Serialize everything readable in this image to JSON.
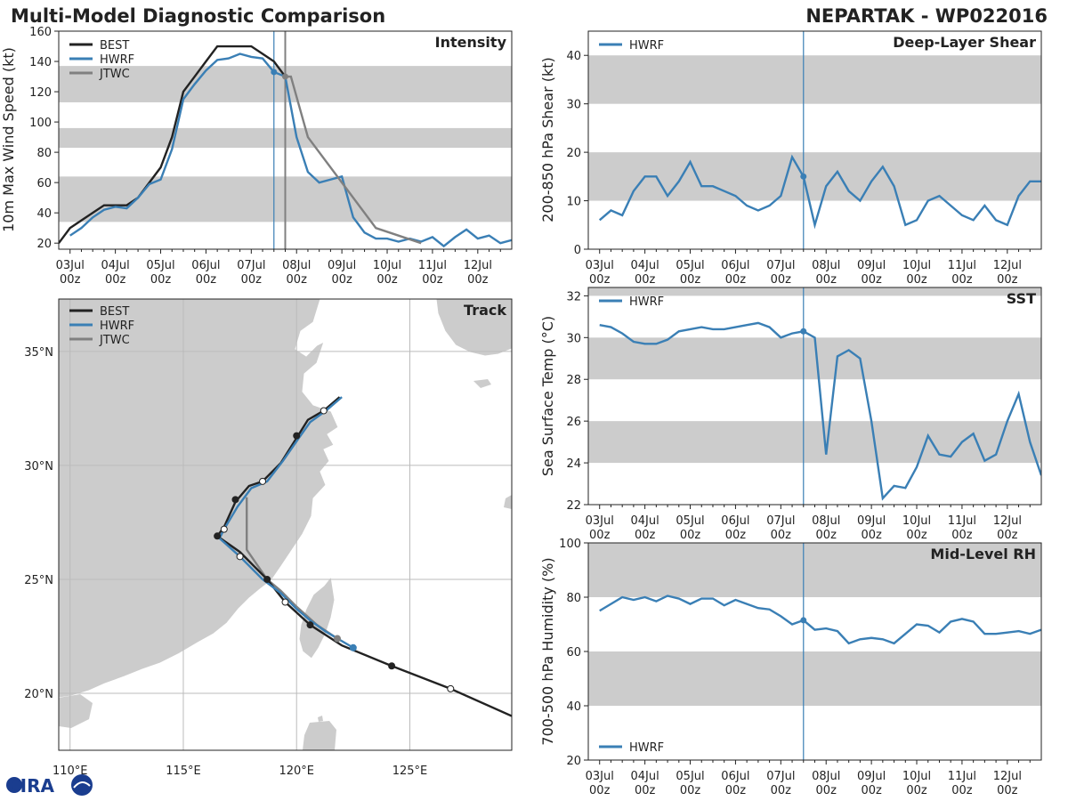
{
  "header": {
    "title": "Multi-Model Diagnostic Comparison",
    "storm": "NEPARTAK - WP022016",
    "logo_text": "CIRA"
  },
  "colors": {
    "best": "#222222",
    "hwrf": "#3a7fb5",
    "jtwc": "#808080",
    "band": "#cccccc",
    "land": "#cccccc",
    "grid": "#bbbbbb"
  },
  "time_axis": {
    "start_day": 3,
    "tick_days": [
      3,
      4,
      5,
      6,
      7,
      8,
      9,
      10,
      11,
      12
    ],
    "tick_labels": [
      "03Jul",
      "04Jul",
      "05Jul",
      "06Jul",
      "07Jul",
      "08Jul",
      "09Jul",
      "10Jul",
      "11Jul",
      "12Jul"
    ],
    "tick_sublabel": "00z",
    "current_time_days": 7.5
  },
  "chart_data": [
    {
      "id": "intensity",
      "type": "line",
      "title": "Intensity",
      "ylabel": "10m Max Wind Speed (kt)",
      "xlabel": "",
      "xlim": [
        2.75,
        12.75
      ],
      "ylim": [
        16,
        160
      ],
      "yticks": [
        20,
        40,
        60,
        80,
        100,
        120,
        140,
        160
      ],
      "bands": [
        [
          34,
          64
        ],
        [
          83,
          96
        ],
        [
          113,
          137
        ]
      ],
      "vlines": [
        {
          "x": 7.5,
          "color": "hwrf"
        },
        {
          "x": 7.75,
          "color": "jtwc"
        }
      ],
      "legend": [
        "BEST",
        "HWRF",
        "JTWC"
      ],
      "series": [
        {
          "name": "BEST",
          "color": "best",
          "x": [
            2.75,
            3.0,
            3.25,
            3.5,
            3.75,
            4.0,
            4.25,
            4.5,
            4.75,
            5.0,
            5.25,
            5.5,
            5.75,
            6.0,
            6.25,
            6.5,
            6.75,
            7.0,
            7.25,
            7.5,
            7.75
          ],
          "y": [
            20,
            30,
            35,
            40,
            45,
            45,
            45,
            50,
            60,
            70,
            90,
            120,
            130,
            140,
            150,
            150,
            150,
            150,
            145,
            140,
            130
          ]
        },
        {
          "name": "HWRF",
          "color": "hwrf",
          "marker_index": 0,
          "x": [
            7.5,
            7.75,
            8.0,
            8.25,
            8.5,
            8.75,
            9.0,
            9.25,
            9.5,
            9.75,
            10.0,
            10.25,
            10.5,
            10.75,
            11.0,
            11.25,
            11.5,
            11.75,
            12.0,
            12.25,
            12.5,
            12.75
          ],
          "y": [
            133,
            130,
            90,
            67,
            60,
            62,
            64,
            37,
            27,
            23,
            23,
            21,
            23,
            21,
            24,
            18,
            24,
            29,
            23,
            25,
            20,
            22
          ],
          "x_pre": [
            3.0,
            3.25,
            3.5,
            3.75,
            4.0,
            4.25,
            4.5,
            4.75,
            5.0,
            5.25,
            5.5,
            5.75,
            6.0,
            6.25,
            6.5,
            6.75,
            7.0,
            7.25,
            7.5
          ],
          "y_pre": [
            25,
            30,
            37,
            42,
            44,
            43,
            50,
            59,
            62,
            82,
            115,
            125,
            134,
            141,
            142,
            145,
            143,
            142,
            133
          ]
        },
        {
          "name": "JTWC",
          "color": "jtwc",
          "marker_index": 0,
          "x": [
            7.75,
            7.875,
            8.25,
            9.0,
            9.75,
            10.75
          ],
          "y": [
            130,
            130,
            90,
            60,
            30,
            20
          ]
        }
      ]
    },
    {
      "id": "shear",
      "type": "line",
      "title": "Deep-Layer Shear",
      "ylabel": "200-850 hPa Shear (kt)",
      "xlabel": "",
      "xlim": [
        2.75,
        12.75
      ],
      "ylim": [
        0,
        45
      ],
      "yticks": [
        0,
        10,
        20,
        30,
        40
      ],
      "bands": [
        [
          10,
          20
        ],
        [
          30,
          40
        ]
      ],
      "vlines": [
        {
          "x": 7.5,
          "color": "hwrf"
        }
      ],
      "legend": [
        "HWRF"
      ],
      "series": [
        {
          "name": "HWRF",
          "color": "hwrf",
          "marker_x": 7.5,
          "x": [
            3.0,
            3.25,
            3.5,
            3.75,
            4.0,
            4.25,
            4.5,
            4.75,
            5.0,
            5.25,
            5.5,
            5.75,
            6.0,
            6.25,
            6.5,
            6.75,
            7.0,
            7.25,
            7.5,
            7.75,
            8.0,
            8.25,
            8.5,
            8.75,
            9.0,
            9.25,
            9.5,
            9.75,
            10.0,
            10.25,
            10.5,
            10.75,
            11.0,
            11.25,
            11.5,
            11.75,
            12.0,
            12.25,
            12.5,
            12.75
          ],
          "y": [
            6,
            8,
            7,
            12,
            15,
            15,
            11,
            14,
            18,
            13,
            13,
            12,
            11,
            9,
            8,
            9,
            11,
            19,
            15,
            5,
            13,
            16,
            12,
            10,
            14,
            17,
            13,
            5,
            6,
            10,
            11,
            9,
            7,
            6,
            9,
            6,
            5,
            11,
            14,
            14
          ]
        }
      ]
    },
    {
      "id": "sst",
      "type": "line",
      "title": "SST",
      "ylabel": "Sea Surface Temp (°C)",
      "xlabel": "",
      "xlim": [
        2.75,
        12.75
      ],
      "ylim": [
        22,
        32.4
      ],
      "yticks": [
        22,
        24,
        26,
        28,
        30,
        32
      ],
      "bands": [
        [
          24,
          26
        ],
        [
          28,
          30
        ],
        [
          32,
          32.4
        ]
      ],
      "vlines": [
        {
          "x": 7.5,
          "color": "hwrf"
        }
      ],
      "legend": [
        "HWRF"
      ],
      "series": [
        {
          "name": "HWRF",
          "color": "hwrf",
          "marker_x": 7.5,
          "x": [
            3.0,
            3.25,
            3.5,
            3.75,
            4.0,
            4.25,
            4.5,
            4.75,
            5.0,
            5.25,
            5.5,
            5.75,
            6.0,
            6.25,
            6.5,
            6.75,
            7.0,
            7.25,
            7.5,
            7.75,
            8.0,
            8.25,
            8.5,
            8.75,
            9.0,
            9.25,
            9.5,
            9.75,
            10.0,
            10.25,
            10.5,
            10.75,
            11.0,
            11.25,
            11.5,
            11.75,
            12.0,
            12.25,
            12.5,
            12.75
          ],
          "y": [
            30.6,
            30.5,
            30.2,
            29.8,
            29.7,
            29.7,
            29.9,
            30.3,
            30.4,
            30.5,
            30.4,
            30.4,
            30.5,
            30.6,
            30.7,
            30.5,
            30.0,
            30.2,
            30.3,
            30.0,
            24.4,
            29.1,
            29.4,
            29.0,
            26.0,
            22.3,
            22.9,
            22.8,
            23.8,
            25.3,
            24.4,
            24.3,
            25.0,
            25.4,
            24.1,
            24.4,
            26.0,
            27.3,
            25.0,
            23.4
          ]
        }
      ]
    },
    {
      "id": "rh",
      "type": "line",
      "title": "Mid-Level RH",
      "ylabel": "700-500 hPa Humidity (%)",
      "xlabel": "",
      "xlim": [
        2.75,
        12.75
      ],
      "ylim": [
        20,
        100
      ],
      "yticks": [
        20,
        40,
        60,
        80,
        100
      ],
      "bands": [
        [
          40,
          60
        ],
        [
          80,
          100
        ]
      ],
      "vlines": [
        {
          "x": 7.5,
          "color": "hwrf"
        }
      ],
      "legend": [
        "HWRF"
      ],
      "series": [
        {
          "name": "HWRF",
          "color": "hwrf",
          "marker_x": 7.5,
          "x": [
            3.0,
            3.25,
            3.5,
            3.75,
            4.0,
            4.25,
            4.5,
            4.75,
            5.0,
            5.25,
            5.5,
            5.75,
            6.0,
            6.25,
            6.5,
            6.75,
            7.0,
            7.25,
            7.5,
            7.75,
            8.0,
            8.25,
            8.5,
            8.75,
            9.0,
            9.25,
            9.5,
            9.75,
            10.0,
            10.25,
            10.5,
            10.75,
            11.0,
            11.25,
            11.5,
            11.75,
            12.0,
            12.25,
            12.5,
            12.75
          ],
          "y": [
            75,
            77.5,
            80,
            79,
            80,
            78.5,
            80.5,
            79.5,
            77.5,
            79.5,
            79.5,
            77,
            79,
            77.5,
            76,
            75.5,
            73,
            70,
            71.5,
            68,
            68.5,
            67.5,
            63,
            64.5,
            65,
            64.5,
            63,
            66.5,
            70,
            69.5,
            67,
            71,
            72,
            71,
            66.5,
            66.5,
            67,
            67.5,
            66.5,
            68
          ]
        }
      ]
    },
    {
      "id": "track",
      "type": "scatter",
      "title": "Track",
      "xlabel": "",
      "ylabel": "",
      "xlim": [
        109.5,
        129.5
      ],
      "ylim": [
        17.5,
        37.3
      ],
      "xticks": [
        110,
        115,
        120,
        125
      ],
      "xtick_labels": [
        "110°E",
        "115°E",
        "120°E",
        "125°E"
      ],
      "yticks": [
        20,
        25,
        30,
        35
      ],
      "ytick_labels": [
        "20°N",
        "25°N",
        "30°N",
        "35°N"
      ],
      "legend": [
        "BEST",
        "HWRF",
        "JTWC"
      ],
      "series": [
        {
          "name": "BEST",
          "color": "best",
          "lon": [
            129.5,
            126.8,
            124.2,
            122.0,
            120.6,
            119.5,
            118.7,
            117.5,
            116.5,
            116.8,
            117.3,
            117.9,
            118.5,
            119.3,
            120.0,
            120.5,
            121.2,
            121.9
          ],
          "lat": [
            19.0,
            20.2,
            21.2,
            22.1,
            23.0,
            24.0,
            25.0,
            26.2,
            26.9,
            27.3,
            28.4,
            29.1,
            29.3,
            30.1,
            31.2,
            32.0,
            32.4,
            33.0
          ],
          "dots": [
            {
              "lon": 126.8,
              "lat": 20.2,
              "fill": "open"
            },
            {
              "lon": 124.2,
              "lat": 21.2,
              "fill": "solid"
            },
            {
              "lon": 120.6,
              "lat": 23.0,
              "fill": "solid"
            },
            {
              "lon": 119.5,
              "lat": 24.0,
              "fill": "open"
            },
            {
              "lon": 118.7,
              "lat": 25.0,
              "fill": "solid"
            },
            {
              "lon": 117.5,
              "lat": 26.0,
              "fill": "open"
            },
            {
              "lon": 116.5,
              "lat": 26.9,
              "fill": "solid"
            },
            {
              "lon": 116.8,
              "lat": 27.2,
              "fill": "open"
            },
            {
              "lon": 117.3,
              "lat": 28.5,
              "fill": "solid"
            },
            {
              "lon": 118.5,
              "lat": 29.3,
              "fill": "open"
            },
            {
              "lon": 120.0,
              "lat": 31.3,
              "fill": "solid"
            },
            {
              "lon": 121.2,
              "lat": 32.4,
              "fill": "open"
            }
          ]
        },
        {
          "name": "HWRF",
          "color": "hwrf",
          "lon": [
            122.5,
            121.3,
            120.6,
            120.0,
            119.3,
            118.5,
            117.5,
            116.6,
            116.8,
            117.4,
            118.0,
            118.7,
            119.4,
            120.1,
            120.6,
            121.3,
            122.0
          ],
          "lat": [
            22.0,
            22.7,
            23.2,
            23.7,
            24.4,
            25.0,
            26.0,
            26.8,
            27.2,
            28.2,
            29.0,
            29.3,
            30.2,
            31.2,
            31.9,
            32.4,
            33.0
          ],
          "dots": [
            {
              "lon": 122.5,
              "lat": 22.0,
              "fill": "color"
            }
          ]
        },
        {
          "name": "JTWC",
          "color": "jtwc",
          "lon": [
            121.8,
            120.9,
            120.0,
            119.3,
            118.7,
            117.8,
            117.8
          ],
          "lat": [
            22.4,
            23.0,
            23.8,
            24.5,
            25.0,
            26.3,
            28.6
          ],
          "dots": [
            {
              "lon": 121.8,
              "lat": 22.4,
              "fill": "color"
            }
          ]
        }
      ]
    }
  ]
}
